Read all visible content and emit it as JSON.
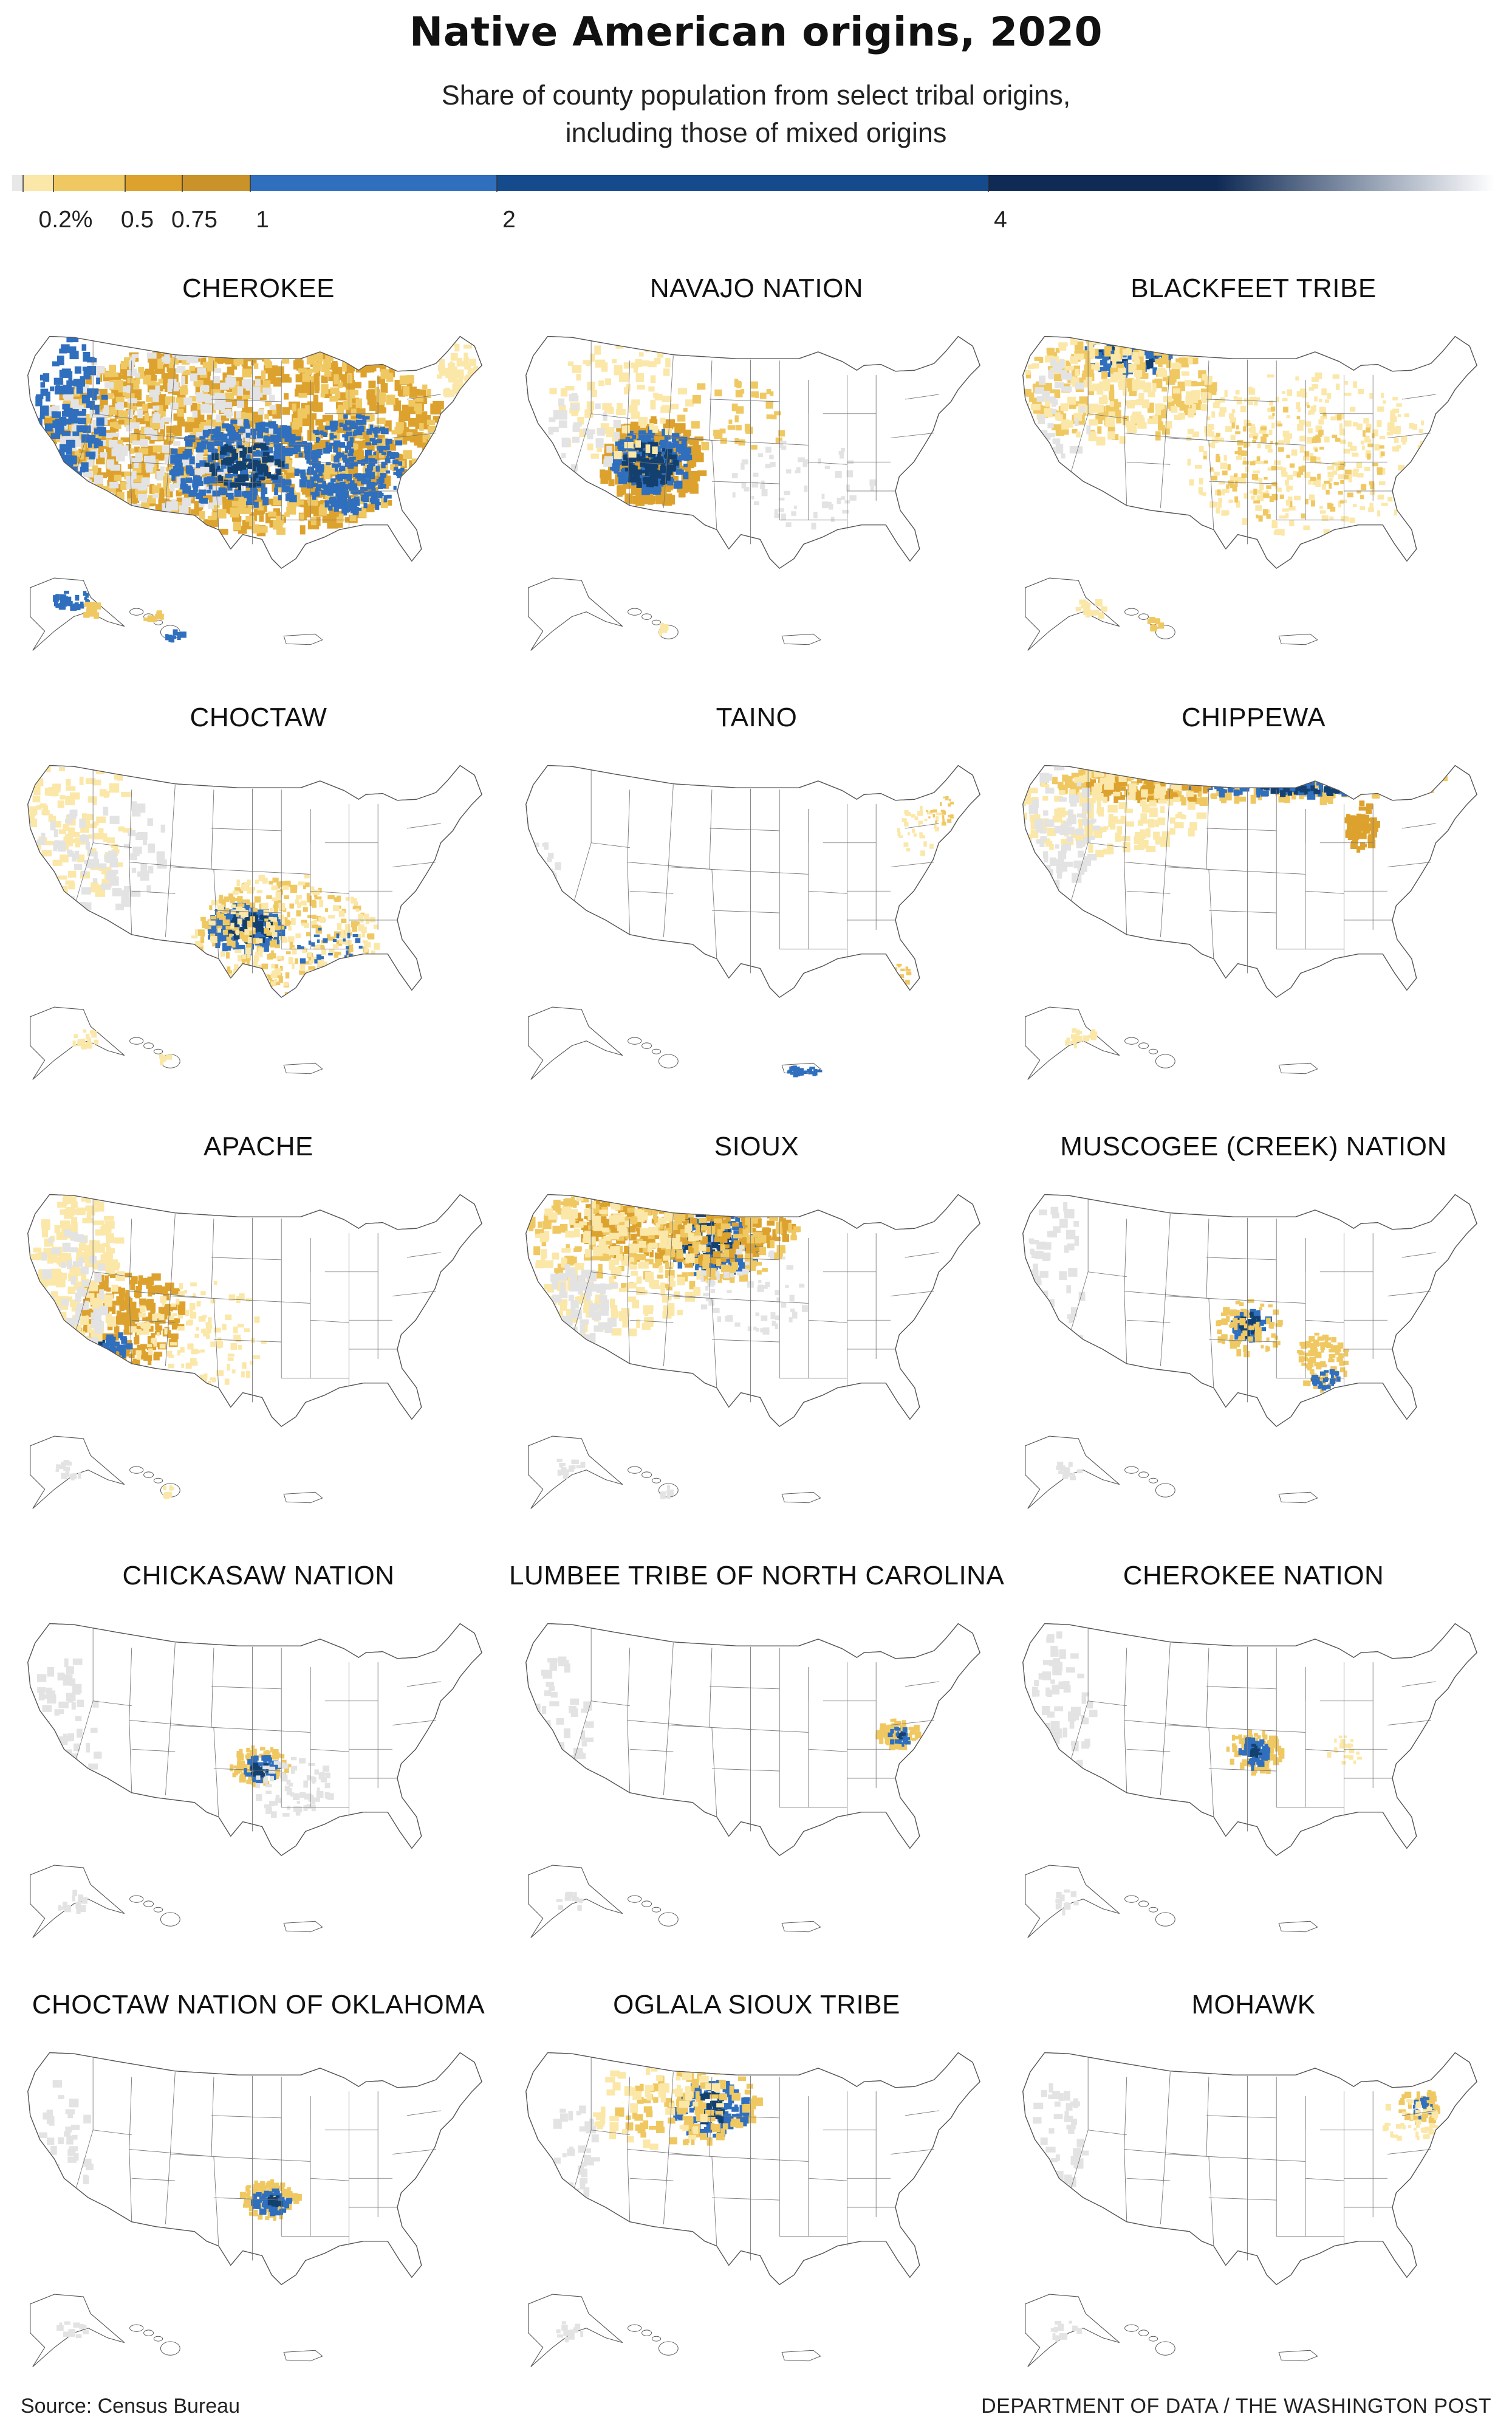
{
  "title": "Native American origins, 2020",
  "subtitle_line1": "Share of county population from select tribal origins,",
  "subtitle_line2": "including those of mixed origins",
  "legend": {
    "ticks": [
      "0.2%",
      "0.5",
      "0.75",
      "1",
      "2",
      "4"
    ],
    "bins": [
      {
        "from": 0,
        "to": 0.1,
        "color": "#e8e8e8"
      },
      {
        "from": 0.1,
        "to": 0.2,
        "color": "#fbe7a8"
      },
      {
        "from": 0.2,
        "to": 0.5,
        "color": "#f0c862"
      },
      {
        "from": 0.5,
        "to": 0.75,
        "color": "#dda22e"
      },
      {
        "from": 0.75,
        "to": 1,
        "color": "#c9932a"
      },
      {
        "from": 1,
        "to": 2,
        "color": "#2f6fbe"
      },
      {
        "from": 2,
        "to": 4,
        "color": "#154b8c"
      },
      {
        "from": 4,
        "to": 8,
        "color": "#0f2a55"
      }
    ]
  },
  "colors": {
    "none": "#ffffff",
    "trace": "#e3e3e3",
    "low": "#fbe7a8",
    "mid": "#f0c862",
    "high": "#dda22e",
    "blue": "#2f6fbe",
    "navy": "#13406f",
    "border": "#555555"
  },
  "panels": [
    {
      "name": "CHEROKEE"
    },
    {
      "name": "NAVAJO NATION"
    },
    {
      "name": "BLACKFEET TRIBE"
    },
    {
      "name": "CHOCTAW"
    },
    {
      "name": "TAINO"
    },
    {
      "name": "CHIPPEWA"
    },
    {
      "name": "APACHE"
    },
    {
      "name": "SIOUX"
    },
    {
      "name": "MUSCOGEE (CREEK) NATION"
    },
    {
      "name": "CHICKASAW NATION"
    },
    {
      "name": "LUMBEE TRIBE OF NORTH CAROLINA"
    },
    {
      "name": "CHEROKEE NATION"
    },
    {
      "name": "CHOCTAW NATION OF OKLAHOMA"
    },
    {
      "name": "OGLALA SIOUX TRIBE"
    },
    {
      "name": "MOHAWK"
    }
  ],
  "source": "Source: Census Bureau",
  "credit": "DEPARTMENT OF DATA / THE WASHINGTON POST"
}
